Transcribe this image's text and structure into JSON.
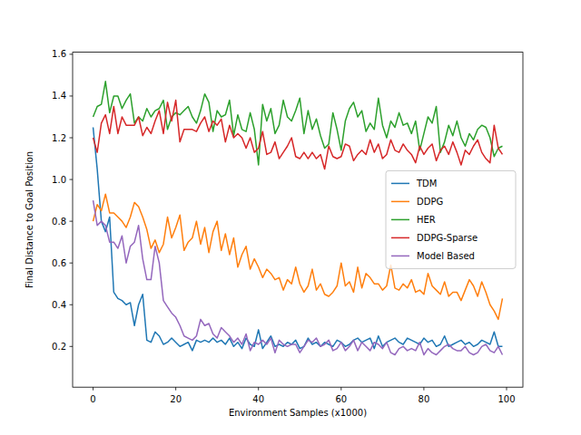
{
  "chart_data": {
    "type": "line",
    "x_label": "Environment Samples (x1000)",
    "y_label": "Final Distance to Goal Position",
    "x": [
      0,
      1,
      2,
      3,
      4,
      5,
      6,
      7,
      8,
      9,
      10,
      11,
      12,
      13,
      14,
      15,
      16,
      17,
      18,
      19,
      20,
      21,
      22,
      23,
      24,
      25,
      26,
      27,
      28,
      29,
      30,
      31,
      32,
      33,
      34,
      35,
      36,
      37,
      38,
      39,
      40,
      41,
      42,
      43,
      44,
      45,
      46,
      47,
      48,
      49,
      50,
      51,
      52,
      53,
      54,
      55,
      56,
      57,
      58,
      59,
      60,
      61,
      62,
      63,
      64,
      65,
      66,
      67,
      68,
      69,
      70,
      71,
      72,
      73,
      74,
      75,
      76,
      77,
      78,
      79,
      80,
      81,
      82,
      83,
      84,
      85,
      86,
      87,
      88,
      89,
      90,
      91,
      92,
      93,
      94,
      95,
      96,
      97,
      98,
      99
    ],
    "xlim": [
      -4.95,
      103.95
    ],
    "xticks": [
      0,
      20,
      40,
      60,
      80,
      100
    ],
    "ylim": [
      0.005,
      1.61
    ],
    "yticks": [
      0.2,
      0.4,
      0.6,
      0.8,
      {
        "value": 1,
        "label": "1.0"
      },
      1.2,
      1.4,
      1.6
    ],
    "grid": false,
    "legend": "center right",
    "series": [
      {
        "name": "TDM",
        "color": "#1f77b4",
        "values": [
          1.25,
          1.05,
          0.8,
          0.75,
          0.82,
          0.46,
          0.43,
          0.42,
          0.4,
          0.41,
          0.3,
          0.4,
          0.45,
          0.23,
          0.22,
          0.27,
          0.25,
          0.21,
          0.22,
          0.24,
          0.22,
          0.2,
          0.21,
          0.22,
          0.18,
          0.23,
          0.22,
          0.23,
          0.22,
          0.24,
          0.22,
          0.23,
          0.21,
          0.24,
          0.2,
          0.22,
          0.19,
          0.24,
          0.21,
          0.2,
          0.28,
          0.19,
          0.22,
          0.25,
          0.2,
          0.21,
          0.2,
          0.22,
          0.21,
          0.23,
          0.19,
          0.2,
          0.24,
          0.21,
          0.22,
          0.2,
          0.22,
          0.21,
          0.2,
          0.23,
          0.22,
          0.2,
          0.21,
          0.23,
          0.24,
          0.22,
          0.23,
          0.24,
          0.19,
          0.25,
          0.2,
          0.22,
          0.23,
          0.24,
          0.22,
          0.21,
          0.24,
          0.23,
          0.22,
          0.21,
          0.24,
          0.22,
          0.23,
          0.2,
          0.21,
          0.25,
          0.2,
          0.21,
          0.22,
          0.23,
          0.21,
          0.22,
          0.2,
          0.21,
          0.23,
          0.22,
          0.21,
          0.27,
          0.2,
          0.2
        ]
      },
      {
        "name": "DDPG",
        "color": "#ff7f0e",
        "values": [
          0.8,
          0.88,
          0.85,
          0.93,
          0.84,
          0.84,
          0.82,
          0.8,
          0.77,
          0.82,
          0.89,
          0.87,
          0.82,
          0.76,
          0.67,
          0.71,
          0.65,
          0.69,
          0.82,
          0.72,
          0.77,
          0.83,
          0.66,
          0.7,
          0.72,
          0.8,
          0.69,
          0.77,
          0.65,
          0.75,
          0.8,
          0.66,
          0.74,
          0.64,
          0.72,
          0.58,
          0.64,
          0.68,
          0.57,
          0.62,
          0.58,
          0.53,
          0.57,
          0.55,
          0.52,
          0.53,
          0.47,
          0.52,
          0.5,
          0.58,
          0.5,
          0.46,
          0.49,
          0.57,
          0.47,
          0.5,
          0.45,
          0.44,
          0.46,
          0.49,
          0.6,
          0.49,
          0.51,
          0.46,
          0.58,
          0.48,
          0.55,
          0.53,
          0.5,
          0.5,
          0.47,
          0.49,
          0.59,
          0.48,
          0.47,
          0.5,
          0.48,
          0.52,
          0.46,
          0.47,
          0.45,
          0.55,
          0.49,
          0.47,
          0.45,
          0.51,
          0.44,
          0.46,
          0.46,
          0.42,
          0.47,
          0.52,
          0.49,
          0.44,
          0.51,
          0.46,
          0.4,
          0.37,
          0.33,
          0.43
        ]
      },
      {
        "name": "HER",
        "color": "#2ca02c",
        "values": [
          1.3,
          1.35,
          1.36,
          1.47,
          1.32,
          1.4,
          1.4,
          1.34,
          1.38,
          1.41,
          1.27,
          1.3,
          1.28,
          1.34,
          1.3,
          1.33,
          1.34,
          1.38,
          1.24,
          1.3,
          1.32,
          1.31,
          1.33,
          1.35,
          1.3,
          1.27,
          1.33,
          1.41,
          1.37,
          1.23,
          1.33,
          1.3,
          1.31,
          1.38,
          1.21,
          1.31,
          1.24,
          1.23,
          1.32,
          1.24,
          1.07,
          1.36,
          1.28,
          1.34,
          1.22,
          1.26,
          1.38,
          1.3,
          1.28,
          1.33,
          1.39,
          1.22,
          1.33,
          1.24,
          1.29,
          1.21,
          1.15,
          1.17,
          1.32,
          1.24,
          1.14,
          1.28,
          1.34,
          1.37,
          1.3,
          1.33,
          1.23,
          1.27,
          1.24,
          1.39,
          1.26,
          1.2,
          1.28,
          1.25,
          1.32,
          1.26,
          1.27,
          1.22,
          1.28,
          1.14,
          1.22,
          1.3,
          1.27,
          1.35,
          1.13,
          1.18,
          1.26,
          1.21,
          1.28,
          1.2,
          1.16,
          1.22,
          1.19,
          1.24,
          1.26,
          1.25,
          1.2,
          1.11,
          1.15,
          1.16
        ]
      },
      {
        "name": "DDPG-Sparse",
        "color": "#d62728",
        "values": [
          1.2,
          1.13,
          1.27,
          1.31,
          1.22,
          1.35,
          1.22,
          1.3,
          1.26,
          1.26,
          1.26,
          1.3,
          1.21,
          1.25,
          1.22,
          1.28,
          1.33,
          1.22,
          1.37,
          1.28,
          1.38,
          1.18,
          1.24,
          1.24,
          1.24,
          1.23,
          1.27,
          1.3,
          1.23,
          1.28,
          1.26,
          1.29,
          1.18,
          1.26,
          1.2,
          1.22,
          1.2,
          1.15,
          1.2,
          1.13,
          1.15,
          1.23,
          1.12,
          1.13,
          1.18,
          1.1,
          1.13,
          1.16,
          1.2,
          1.11,
          1.1,
          1.13,
          1.1,
          1.13,
          1.1,
          1.12,
          1.05,
          1.16,
          1.11,
          1.1,
          1.11,
          1.17,
          1.16,
          1.09,
          1.12,
          1.14,
          1.12,
          1.19,
          1.13,
          1.17,
          1.1,
          1.12,
          1.19,
          1.14,
          1.13,
          1.17,
          1.14,
          1.12,
          1.08,
          1.16,
          1.12,
          1.15,
          1.17,
          1.09,
          1.14,
          1.16,
          1.12,
          1.18,
          1.13,
          1.07,
          1.14,
          1.12,
          1.16,
          1.19,
          1.13,
          1.1,
          1.08,
          1.26,
          1.15,
          1.12
        ]
      },
      {
        "name": "Model Based",
        "color": "#9467bd",
        "values": [
          0.9,
          0.78,
          0.8,
          0.78,
          0.7,
          0.7,
          0.67,
          0.73,
          0.6,
          0.68,
          0.7,
          0.78,
          0.62,
          0.52,
          0.52,
          0.68,
          0.6,
          0.42,
          0.39,
          0.36,
          0.34,
          0.3,
          0.25,
          0.24,
          0.23,
          0.25,
          0.33,
          0.3,
          0.31,
          0.26,
          0.24,
          0.29,
          0.27,
          0.25,
          0.22,
          0.24,
          0.21,
          0.26,
          0.18,
          0.22,
          0.21,
          0.23,
          0.21,
          0.24,
          0.17,
          0.23,
          0.21,
          0.2,
          0.21,
          0.21,
          0.17,
          0.2,
          0.23,
          0.22,
          0.24,
          0.2,
          0.21,
          0.23,
          0.18,
          0.19,
          0.22,
          0.18,
          0.2,
          0.23,
          0.18,
          0.22,
          0.2,
          0.18,
          0.22,
          0.21,
          0.19,
          0.22,
          0.17,
          0.16,
          0.19,
          0.2,
          0.18,
          0.19,
          0.18,
          0.22,
          0.16,
          0.19,
          0.17,
          0.16,
          0.18,
          0.2,
          0.21,
          0.19,
          0.18,
          0.18,
          0.2,
          0.17,
          0.16,
          0.17,
          0.2,
          0.21,
          0.18,
          0.17,
          0.2,
          0.16
        ]
      }
    ]
  }
}
